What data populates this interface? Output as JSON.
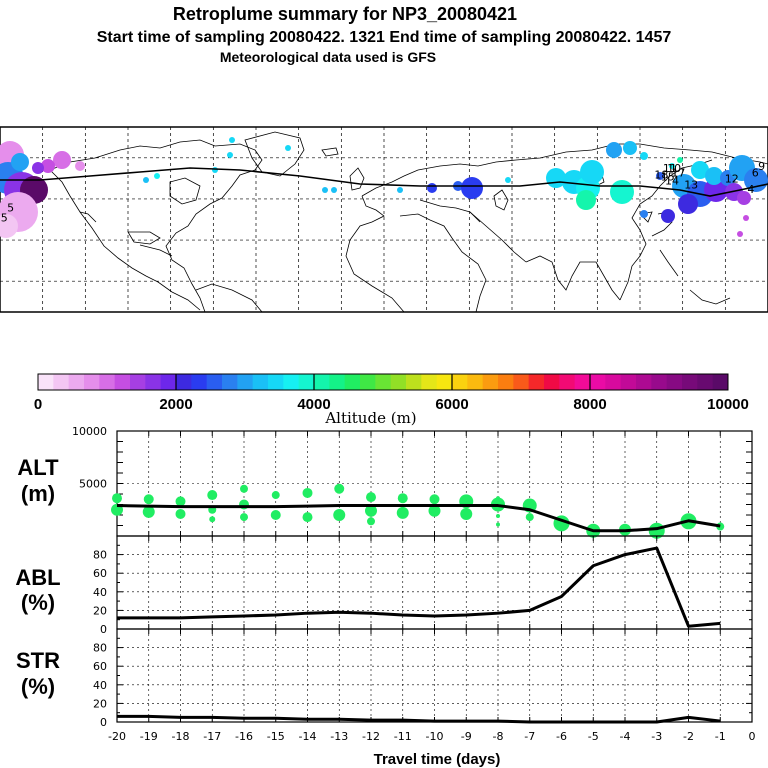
{
  "header": {
    "title": "Retroplume summary for NP3_20080421",
    "subtitle": "Start time of sampling 20080422.  1321     End time of sampling 20080422.  1457",
    "met": "Meteorological data used is GFS"
  },
  "colorbar": {
    "label": "Altitude (m)",
    "ticks": [
      "0",
      "2000",
      "4000",
      "6000",
      "8000",
      "10000"
    ],
    "colors": [
      "#f9e3f9",
      "#f3c6f3",
      "#ecaaef",
      "#e58eeb",
      "#d76ee6",
      "#c54ee2",
      "#a63fe3",
      "#8a33e6",
      "#6d27ea",
      "#3d2ae0",
      "#2a3cf0",
      "#2a5ef0",
      "#2a80f0",
      "#22a2f3",
      "#1ac0f6",
      "#16d8f6",
      "#16f0f2",
      "#15f5d0",
      "#14f5ac",
      "#14f288",
      "#20ed62",
      "#3fe845",
      "#69e434",
      "#92e026",
      "#bde01d",
      "#e4e618",
      "#f7e610",
      "#fad20f",
      "#fbba0f",
      "#fb9c10",
      "#fb7e10",
      "#f95a1a",
      "#f5282a",
      "#f00a45",
      "#f20a74",
      "#f20b98",
      "#ea0ba5",
      "#d80a9e",
      "#c20a98",
      "#ad0a92",
      "#980a8c",
      "#870a83",
      "#770a79",
      "#680a70",
      "#5a0a68"
    ],
    "major_labels_at": [
      0,
      2000,
      4000,
      6000,
      8000,
      10000
    ]
  },
  "map": {
    "labels": [
      {
        "t": "18",
        "lon": 130,
        "lat": 50
      },
      {
        "t": "15",
        "lon": 133,
        "lat": 49
      },
      {
        "t": "14",
        "lon": 135,
        "lat": 47
      },
      {
        "t": "11",
        "lon": 134,
        "lat": 53
      },
      {
        "t": "10",
        "lon": 136,
        "lat": 53
      },
      {
        "t": "17",
        "lon": 138,
        "lat": 51
      },
      {
        "t": "13",
        "lon": 144,
        "lat": 45
      },
      {
        "t": "12",
        "lon": 163,
        "lat": 48
      },
      {
        "t": "9",
        "lon": 177,
        "lat": 54
      },
      {
        "t": "5",
        "lon": -175,
        "lat": 34
      },
      {
        "t": "5",
        "lon": -178,
        "lat": 29
      },
      {
        "t": "4",
        "lon": 172,
        "lat": 43
      },
      {
        "t": "6",
        "lon": 174,
        "lat": 51
      }
    ]
  },
  "panels": {
    "alt": {
      "label_top": "ALT",
      "label_bottom": "(m)"
    },
    "abl": {
      "label_top": "ABL",
      "label_bottom": "(%)"
    },
    "str": {
      "label_top": "STR",
      "label_bottom": "(%)"
    }
  },
  "chart_data": [
    {
      "type": "line",
      "title": "ALT (m)",
      "xlabel": "Travel time (days)",
      "ylabel": "ALT (m)",
      "xlim": [
        -20,
        0
      ],
      "ylim": [
        0,
        10000
      ],
      "ytick_labels": [
        "5000",
        "10000"
      ],
      "x": [
        -20,
        -19,
        -18,
        -17,
        -16,
        -15,
        -14,
        -13,
        -12,
        -11,
        -10,
        -9,
        -8,
        -7,
        -6,
        -5,
        -4,
        -3,
        -2,
        -1
      ],
      "series": [
        {
          "name": "median altitude",
          "values": [
            2900,
            2850,
            2800,
            2800,
            2800,
            2800,
            2850,
            2900,
            2900,
            2900,
            2900,
            2900,
            2900,
            2500,
            1500,
            500,
            500,
            700,
            1450,
            950
          ]
        }
      ],
      "scatter": [
        {
          "x": -20,
          "y": 3600,
          "s": 5
        },
        {
          "x": -20,
          "y": 2500,
          "s": 6
        },
        {
          "x": -19,
          "y": 3500,
          "s": 5
        },
        {
          "x": -19,
          "y": 2300,
          "s": 6
        },
        {
          "x": -18,
          "y": 3300,
          "s": 5
        },
        {
          "x": -18,
          "y": 2100,
          "s": 5
        },
        {
          "x": -17,
          "y": 3900,
          "s": 5
        },
        {
          "x": -17,
          "y": 2500,
          "s": 4
        },
        {
          "x": -17,
          "y": 1600,
          "s": 3
        },
        {
          "x": -16,
          "y": 4500,
          "s": 4
        },
        {
          "x": -16,
          "y": 3000,
          "s": 5
        },
        {
          "x": -16,
          "y": 1800,
          "s": 4
        },
        {
          "x": -15,
          "y": 3900,
          "s": 4
        },
        {
          "x": -15,
          "y": 2000,
          "s": 5
        },
        {
          "x": -14,
          "y": 4100,
          "s": 5
        },
        {
          "x": -14,
          "y": 1800,
          "s": 5
        },
        {
          "x": -13,
          "y": 4500,
          "s": 5
        },
        {
          "x": -13,
          "y": 2000,
          "s": 6
        },
        {
          "x": -12,
          "y": 3700,
          "s": 5
        },
        {
          "x": -12,
          "y": 2400,
          "s": 6
        },
        {
          "x": -12,
          "y": 1400,
          "s": 4
        },
        {
          "x": -11,
          "y": 3600,
          "s": 5
        },
        {
          "x": -11,
          "y": 2200,
          "s": 6
        },
        {
          "x": -10,
          "y": 3500,
          "s": 5
        },
        {
          "x": -10,
          "y": 2400,
          "s": 6
        },
        {
          "x": -9,
          "y": 3300,
          "s": 7
        },
        {
          "x": -9,
          "y": 2100,
          "s": 6
        },
        {
          "x": -8,
          "y": 3600,
          "s": 2
        },
        {
          "x": -8,
          "y": 3000,
          "s": 7
        },
        {
          "x": -8,
          "y": 1900,
          "s": 2
        },
        {
          "x": -8,
          "y": 1100,
          "s": 2
        },
        {
          "x": -7,
          "y": 2900,
          "s": 7
        },
        {
          "x": -7,
          "y": 1800,
          "s": 4
        },
        {
          "x": -6,
          "y": 1200,
          "s": 8
        },
        {
          "x": -5,
          "y": 500,
          "s": 7
        },
        {
          "x": -4,
          "y": 600,
          "s": 6
        },
        {
          "x": -3,
          "y": 500,
          "s": 8
        },
        {
          "x": -2,
          "y": 1400,
          "s": 8
        },
        {
          "x": -1,
          "y": 900,
          "s": 4
        }
      ]
    },
    {
      "type": "line",
      "title": "ABL (%)",
      "ylabel": "ABL (%)",
      "xlim": [
        -20,
        0
      ],
      "ylim": [
        0,
        100
      ],
      "ytick_labels": [
        "0",
        "20",
        "40",
        "60",
        "80"
      ],
      "x": [
        -20,
        -19,
        -18,
        -17,
        -16,
        -15,
        -14,
        -13,
        -12,
        -11,
        -10,
        -9,
        -8,
        -7,
        -6,
        -5,
        -4,
        -3,
        -2,
        -1
      ],
      "series": [
        {
          "name": "ABL fraction",
          "values": [
            12,
            12,
            12,
            13,
            14,
            15,
            17,
            18,
            17,
            15,
            14,
            15,
            17,
            20,
            35,
            68,
            80,
            87,
            3,
            6
          ]
        }
      ]
    },
    {
      "type": "line",
      "title": "STR (%)",
      "ylabel": "STR (%)",
      "xlim": [
        -20,
        0
      ],
      "ylim": [
        0,
        100
      ],
      "ytick_labels": [
        "0",
        "20",
        "40",
        "60",
        "80"
      ],
      "xtick_labels": [
        "-20",
        "-19",
        "-18",
        "-17",
        "-16",
        "-15",
        "-14",
        "-13",
        "-12",
        "-11",
        "-10",
        "-9",
        "-8",
        "-7",
        "-6",
        "-5",
        "-4",
        "-3",
        "-2",
        "-1",
        "0"
      ],
      "x": [
        -20,
        -19,
        -18,
        -17,
        -16,
        -15,
        -14,
        -13,
        -12,
        -11,
        -10,
        -9,
        -8,
        -7,
        -6,
        -5,
        -4,
        -3,
        -2,
        -1
      ],
      "series": [
        {
          "name": "stratospheric fraction",
          "values": [
            6,
            6,
            5,
            5,
            4,
            4,
            3,
            3,
            2,
            2,
            1,
            1,
            1,
            0,
            0,
            0,
            0,
            0,
            5,
            1
          ]
        }
      ]
    }
  ]
}
